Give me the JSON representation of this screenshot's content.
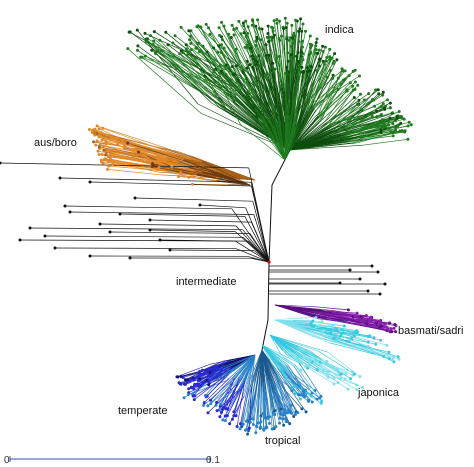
{
  "clades": {
    "indica": "indica",
    "aus_boro": "aus/boro",
    "intermediate": "intermediate",
    "basmati_sadri": "basmati/sadri",
    "japonica": "japonica",
    "temperate": "temperate",
    "tropical": "tropical"
  },
  "colors": {
    "indica": "#1f7a1f",
    "indica_dark": "#0d4d0d",
    "aus_boro": "#e0882a",
    "intermediate": "#111111",
    "basmati_sadri": "#8a1fb0",
    "japonica": "#38c8e0",
    "japonica_light": "#7fe0ea",
    "temperate": "#2a2ad0",
    "tropical": "#2a82c8",
    "root_dot": "#cc0000",
    "scale": "#3355aa"
  },
  "scale_bar": {
    "start_label": "0",
    "end_label": "0.1"
  }
}
